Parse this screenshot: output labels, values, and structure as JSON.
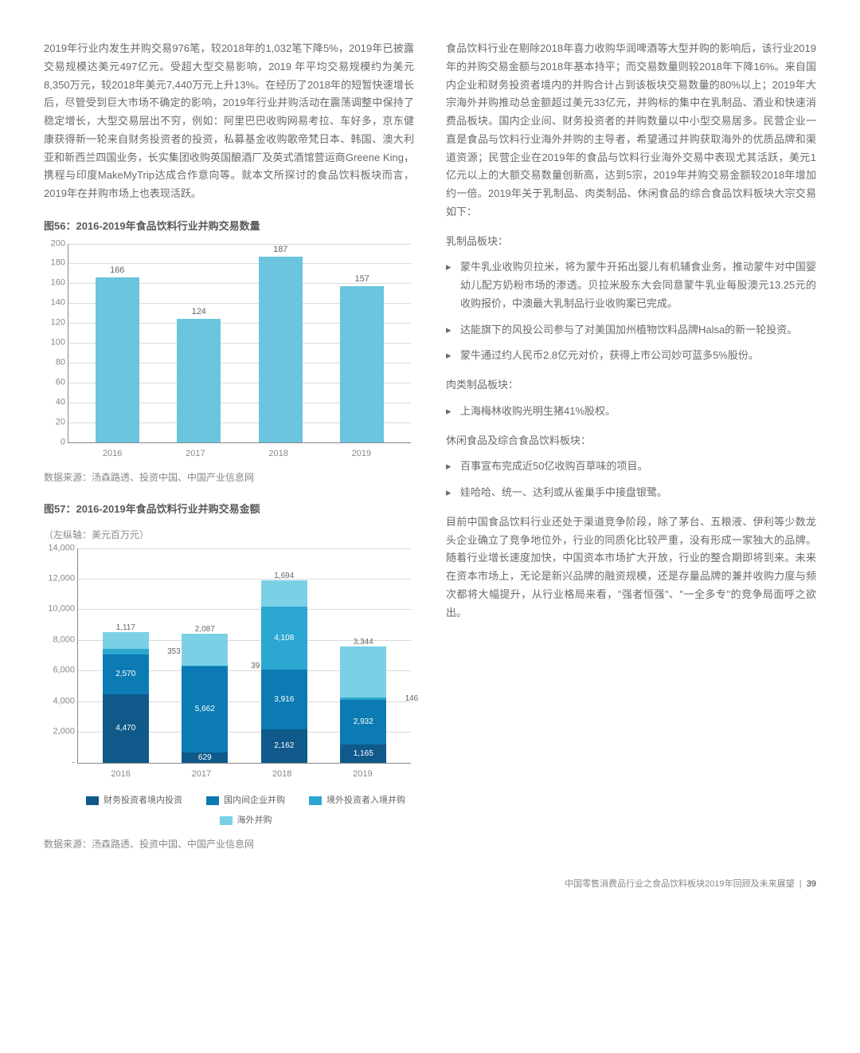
{
  "left_para": "2019年行业内发生并购交易976笔，较2018年的1,032笔下降5%，2019年已披露交易规模达美元497亿元。受超大型交易影响，2019 年平均交易规模约为美元8,350万元，较2018年美元7,440万元上升13%。在经历了2018年的短暂快速增长后，尽管受到巨大市场不确定的影响，2019年行业并购活动在震荡调整中保持了稳定增长，大型交易层出不穷，例如：阿里巴巴收购网易考拉、车好多，京东健康获得新一轮来自财务投资者的投资，私募基金收购歌帝梵日本、韩国、澳大利亚和新西兰四国业务，长实集团收购英国酿酒厂及英式酒馆营运商Greene King，携程与印度MakeMyTrip达成合作意向等。就本文所探讨的食品饮料板块而言，2019年在并购市场上也表现活跃。",
  "chart56": {
    "title": "图56：2016-2019年食品饮料行业并购交易数量",
    "type": "bar",
    "categories": [
      "2016",
      "2017",
      "2018",
      "2019"
    ],
    "values": [
      166,
      124,
      187,
      157
    ],
    "bar_color": "#6bc5de",
    "ylim": [
      0,
      200
    ],
    "ytick_step": 20,
    "label_fontsize": 11,
    "background_color": "#ffffff",
    "grid_color": "#d9d9d9",
    "source": "数据来源：汤森路透、投资中国、中国产业信息网"
  },
  "chart57": {
    "title": "图57：2016-2019年食品饮料行业并购交易金额",
    "unit": "（左纵轴：美元百万元）",
    "type": "stacked_bar",
    "categories": [
      "2016",
      "2017",
      "2018",
      "2019"
    ],
    "series": [
      {
        "name": "财务投资者境内投资",
        "color": "#0f5a8a",
        "values": [
          4470,
          629,
          2162,
          1165
        ]
      },
      {
        "name": "国内间企业并购",
        "color": "#0c7bb3",
        "values": [
          2570,
          5662,
          3916,
          2932
        ]
      },
      {
        "name": "境外投资者入境并购",
        "color": "#2ba7d1",
        "values": [
          353,
          39,
          4108,
          146
        ]
      },
      {
        "name": "海外并购",
        "color": "#7cd0e6",
        "values": [
          1117,
          2087,
          1694,
          3344
        ]
      }
    ],
    "ylim": [
      0,
      14000
    ],
    "ytick_step": 2000,
    "label_fontsize": 11,
    "background_color": "#ffffff",
    "grid_color": "#d9d9d9",
    "legend_position": "bottom",
    "source": "数据来源：汤森路透、投资中国、中国产业信息网"
  },
  "right_para1": "食品饮料行业在剔除2018年喜力收购华润啤酒等大型并购的影响后，该行业2019年的并购交易金额与2018年基本持平；而交易数量则较2018年下降16%。来自国内企业和财务投资者境内的并购合计占到该板块交易数量的80%以上；2019年大宗海外并购推动总金额超过美元33亿元，并购标的集中在乳制品、酒业和快速消费品板块。国内企业间、财务投资者的并购数量以中小型交易居多。民营企业一直是食品与饮料行业海外并购的主导者，希望通过并购获取海外的优质品牌和渠道资源；民营企业在2019年的食品与饮料行业海外交易中表现尤其活跃，美元1亿元以上的大额交易数量创新高，达到5宗，2019年并购交易金额较2018年增加约一倍。2019年关于乳制品、肉类制品、休闲食品的综合食品饮料板块大宗交易如下：",
  "sec_dairy_title": "乳制品板块：",
  "sec_dairy": [
    "蒙牛乳业收购贝拉米，将为蒙牛开拓出婴儿有机辅食业务，推动蒙牛对中国婴幼儿配方奶粉市场的渗透。贝拉米股东大会同意蒙牛乳业每股澳元13.25元的收购报价，中澳最大乳制品行业收购案已完成。",
    "达能旗下的风投公司参与了对美国加州植物饮料品牌Halsa的新一轮投资。",
    "蒙牛通过约人民币2.8亿元对价，获得上市公司妙可蓝多5%股份。"
  ],
  "sec_meat_title": "肉类制品板块：",
  "sec_meat": [
    "上海梅林收购光明生猪41%股权。"
  ],
  "sec_snack_title": "休闲食品及综合食品饮料板块：",
  "sec_snack": [
    "百事宣布完成近50亿收购百草味的项目。",
    "娃哈哈、统一、达利或从雀巢手中接盘银鹭。"
  ],
  "right_para2": "目前中国食品饮料行业还处于渠道竞争阶段，除了茅台、五粮液、伊利等少数龙头企业确立了竞争地位外，行业的同质化比较严重，没有形成一家独大的品牌。随着行业增长速度加快，中国资本市场扩大开放，行业的整合期即将到来。未来在资本市场上，无论是新兴品牌的融资规模，还是存量品牌的兼并收购力度与频次都将大幅提升，从行业格局来看，\"强者恒强\"、\"一全多专\"的竞争局面呼之欲出。",
  "footer": {
    "title": "中国零售消费品行业之食品饮料板块2019年回顾及未来展望",
    "page": "39"
  }
}
